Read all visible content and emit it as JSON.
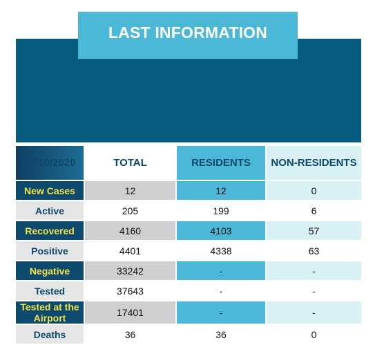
{
  "title": "LAST INFORMATION",
  "table": {
    "date": "23/10/2020",
    "headers": [
      "TOTAL",
      "RESIDENTS",
      "NON-RESIDENTS"
    ],
    "rows": [
      {
        "label": "New Cases",
        "total": "12",
        "residents": "12",
        "non_residents": "0"
      },
      {
        "label": "Active",
        "total": "205",
        "residents": "199",
        "non_residents": "6"
      },
      {
        "label": "Recovered",
        "total": "4160",
        "residents": "4103",
        "non_residents": "57"
      },
      {
        "label": "Positive",
        "total": "4401",
        "residents": "4338",
        "non_residents": "63"
      },
      {
        "label": "Negative",
        "total": "33242",
        "residents": "-",
        "non_residents": "-"
      },
      {
        "label": "Tested",
        "total": "37643",
        "residents": "-",
        "non_residents": "-"
      },
      {
        "label": "Tested at the Airport",
        "total": "17401",
        "residents": "-",
        "non_residents": "-"
      },
      {
        "label": "Deaths",
        "total": "36",
        "residents": "36",
        "non_residents": "0"
      }
    ]
  },
  "colors": {
    "banner": "#075c80",
    "accent": "#4ab8d6",
    "label_dark": "#0d4a6e",
    "label_text_highlight": "#f3e24a"
  }
}
